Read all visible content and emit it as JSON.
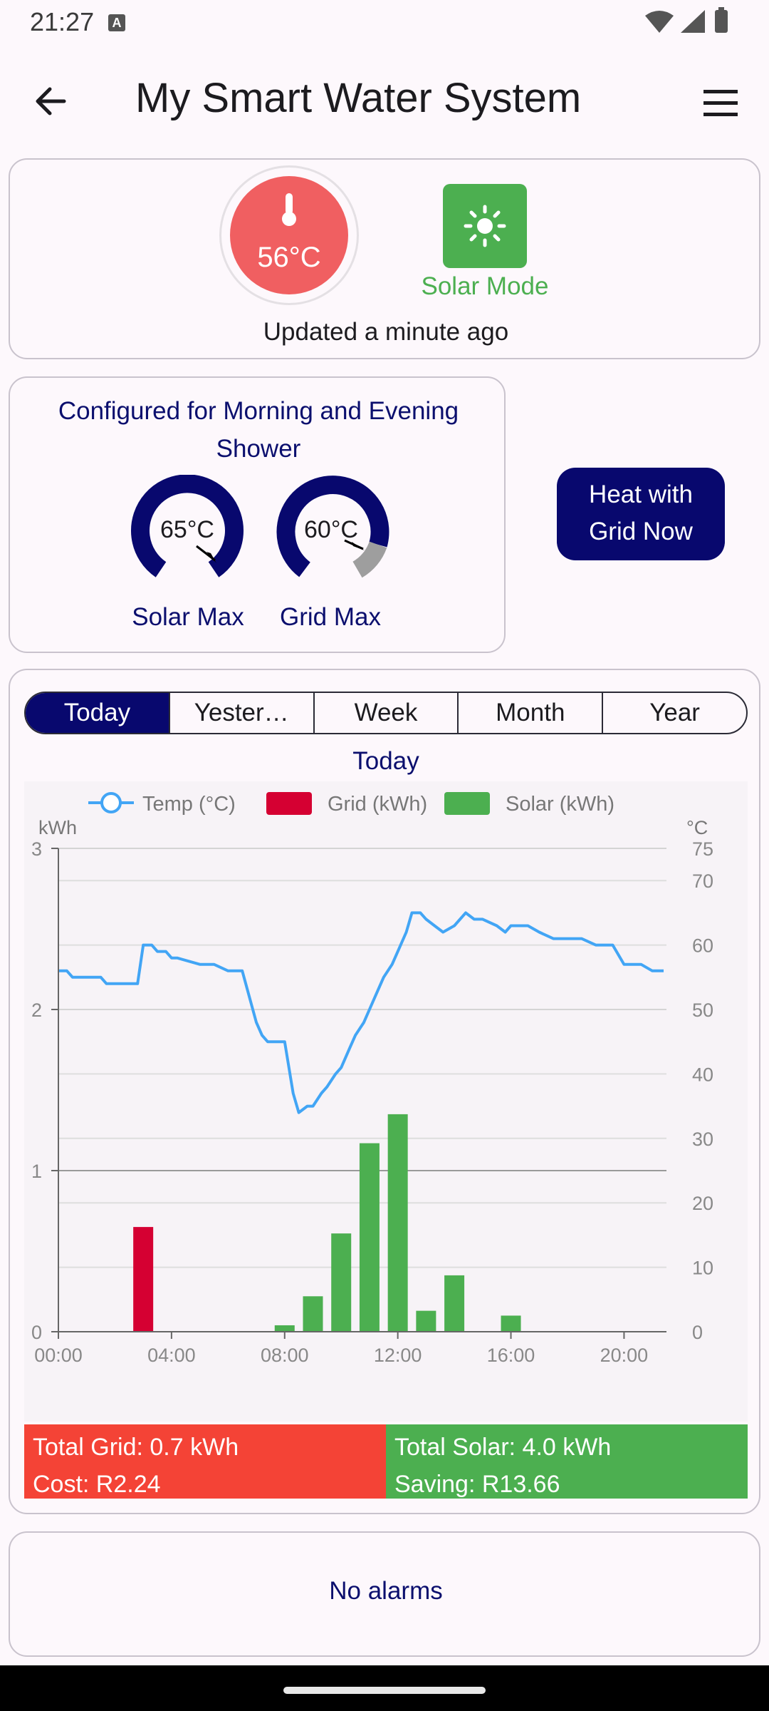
{
  "status_bar": {
    "time": "21:27",
    "icons": [
      "keyboard-a-icon",
      "wifi-icon",
      "signal-icon",
      "battery-icon"
    ]
  },
  "app_bar": {
    "title": "My Smart Water System",
    "back_icon": "arrow-left-icon",
    "menu_icon": "hamburger-menu-icon"
  },
  "status_card": {
    "temperature": "56°C",
    "mode_label": "Solar Mode",
    "mode_icon": "sun-icon",
    "updated": "Updated a minute ago",
    "colors": {
      "temp": "#f05f61",
      "solar": "#4caf50"
    }
  },
  "config_card": {
    "title": "Configured for Morning and Evening Shower",
    "gauges": [
      {
        "label": "Solar Max",
        "value": "65°C",
        "level": 0.65
      },
      {
        "label": "Grid Max",
        "value": "60°C",
        "level": 0.6
      }
    ]
  },
  "heat_button": {
    "line1": "Heat with",
    "line2": "Grid Now"
  },
  "range_tabs": [
    {
      "label": "Today",
      "active": true
    },
    {
      "label": "Yester…",
      "active": false
    },
    {
      "label": "Week",
      "active": false
    },
    {
      "label": "Month",
      "active": false
    },
    {
      "label": "Year",
      "active": false
    }
  ],
  "chart_title": "Today",
  "chart_data": {
    "type": "bar",
    "title": "Today",
    "legend": [
      {
        "name": "Temp (°C)",
        "color": "#42a5f5",
        "kind": "line"
      },
      {
        "name": "Grid (kWh)",
        "color": "#d50032",
        "kind": "bar"
      },
      {
        "name": "Solar (kWh)",
        "color": "#4caf50",
        "kind": "bar"
      }
    ],
    "legend_position": "top",
    "ylabel_left": "kWh",
    "ylabel_right": "°C",
    "x_ticks": [
      "00:00",
      "04:00",
      "08:00",
      "12:00",
      "16:00",
      "20:00"
    ],
    "x_tick_hours": [
      0,
      4,
      8,
      12,
      16,
      20
    ],
    "xlim": [
      0,
      21.5
    ],
    "ylim_left": [
      0,
      3
    ],
    "y_ticks_left": [
      0,
      1,
      2,
      3
    ],
    "ylim_right": [
      0,
      75
    ],
    "y_ticks_right": [
      0,
      10,
      20,
      30,
      40,
      50,
      60,
      70,
      75
    ],
    "grid": true,
    "grid_bars": [
      {
        "hour": 3,
        "value": 0.65
      }
    ],
    "solar_bars": [
      {
        "hour": 8,
        "value": 0.04
      },
      {
        "hour": 9,
        "value": 0.22
      },
      {
        "hour": 10,
        "value": 0.61
      },
      {
        "hour": 11,
        "value": 1.17
      },
      {
        "hour": 12,
        "value": 1.35
      },
      {
        "hour": 13,
        "value": 0.13
      },
      {
        "hour": 14,
        "value": 0.35
      },
      {
        "hour": 16,
        "value": 0.1
      }
    ],
    "temp_series": {
      "name": "Temp (°C)",
      "x": [
        0,
        0.3,
        0.5,
        1,
        1.5,
        1.7,
        2,
        2.5,
        2.8,
        3,
        3.3,
        3.5,
        3.8,
        4,
        4.2,
        5,
        5.5,
        6,
        6.5,
        7,
        7.2,
        7.4,
        7.7,
        8,
        8.3,
        8.5,
        8.8,
        9,
        9.3,
        9.5,
        9.8,
        10,
        10.3,
        10.5,
        10.8,
        11,
        11.3,
        11.5,
        11.8,
        12,
        12.3,
        12.5,
        12.8,
        13,
        13.3,
        13.6,
        14,
        14.4,
        14.7,
        15,
        15.5,
        15.8,
        16,
        16.3,
        16.6,
        17,
        17.5,
        18,
        18.5,
        19,
        19.3,
        19.6,
        20,
        20.3,
        20.6,
        21,
        21.4
      ],
      "values": [
        56,
        56,
        55,
        55,
        55,
        54,
        54,
        54,
        54,
        60,
        60,
        59,
        59,
        58,
        58,
        57,
        57,
        56,
        56,
        48,
        46,
        45,
        45,
        45,
        37,
        34,
        35,
        35,
        37,
        38,
        40,
        41,
        44,
        46,
        48,
        50,
        53,
        55,
        57,
        59,
        62,
        65,
        65,
        64,
        63,
        62,
        63,
        65,
        64,
        64,
        63,
        62,
        63,
        63,
        63,
        62,
        61,
        61,
        61,
        60,
        60,
        60,
        57,
        57,
        57,
        56,
        56
      ]
    }
  },
  "totals": {
    "grid_total": "Total Grid: 0.7 kWh",
    "grid_cost": "Cost: R2.24",
    "solar_total": "Total Solar: 4.0 kWh",
    "solar_saving": "Saving: R13.66",
    "colors": {
      "grid": "#f44336",
      "solar": "#4caf50"
    }
  },
  "alarms": {
    "text": "No alarms"
  }
}
